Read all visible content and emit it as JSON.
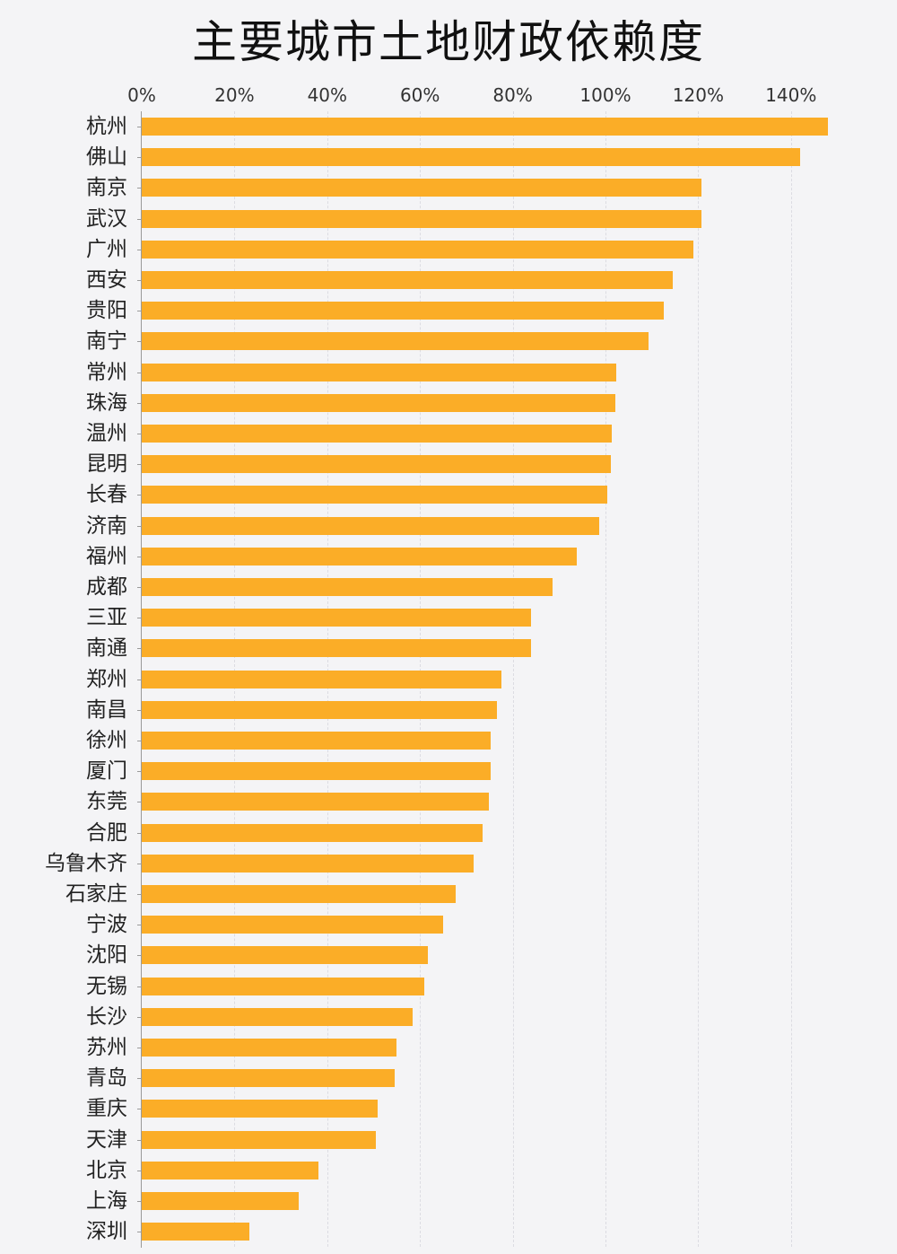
{
  "title": "主要城市土地财政依赖度",
  "colors": {
    "bar": "#FBAD27",
    "background": "#f4f4f6"
  },
  "x_axis": {
    "ticks": [
      "0%",
      "20%",
      "40%",
      "60%",
      "80%",
      "100%",
      "120%",
      "140%"
    ],
    "tick_values": [
      0,
      20,
      40,
      60,
      80,
      100,
      120,
      140
    ]
  },
  "chart_data": {
    "type": "bar",
    "orientation": "horizontal",
    "title": "主要城市土地财政依赖度",
    "xlabel": "",
    "ylabel": "",
    "xlim": [
      0,
      150
    ],
    "grid": true,
    "legend": null,
    "categories": [
      "杭州",
      "佛山",
      "南京",
      "武汉",
      "广州",
      "西安",
      "贵阳",
      "南宁",
      "常州",
      "珠海",
      "温州",
      "昆明",
      "长春",
      "济南",
      "福州",
      "成都",
      "三亚",
      "南通",
      "郑州",
      "南昌",
      "徐州",
      "厦门",
      "东莞",
      "合肥",
      "乌鲁木齐",
      "石家庄",
      "宁波",
      "沈阳",
      "无锡",
      "长沙",
      "苏州",
      "青岛",
      "重庆",
      "天津",
      "北京",
      "上海",
      "深圳"
    ],
    "values": [
      148,
      142,
      120.7,
      120.7,
      119,
      114.5,
      112.6,
      109.3,
      102.3,
      102.1,
      101.4,
      101.2,
      100.4,
      98.6,
      93.8,
      88.6,
      84,
      84,
      77.6,
      76.6,
      75.2,
      75.2,
      74.8,
      73.5,
      71.6,
      67.7,
      65,
      61.7,
      60.9,
      58.4,
      54.9,
      54.5,
      50.9,
      50.5,
      38.1,
      33.8,
      23.2
    ],
    "unit": "%"
  }
}
